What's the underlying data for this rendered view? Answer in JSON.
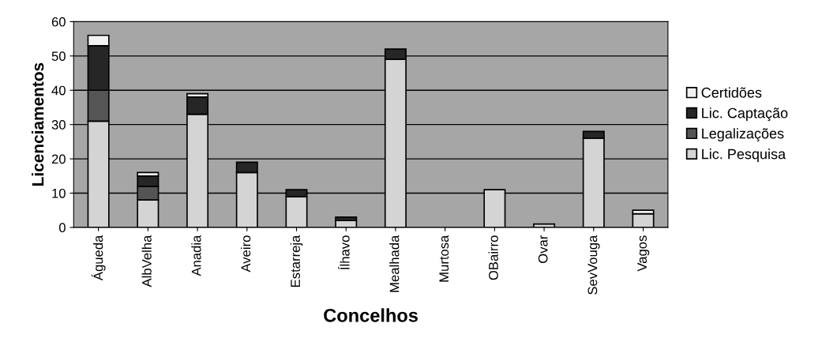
{
  "chart_data": {
    "type": "bar",
    "stacked": true,
    "xlabel": "Concelhos",
    "ylabel": "Licenciamentos",
    "categories": [
      "Águeda",
      "AlbVelha",
      "Anadia",
      "Aveiro",
      "Estarreja",
      "Ílhavo",
      "Mealhada",
      "Murtosa",
      "OBairro",
      "Ovar",
      "SevVouga",
      "Vagos"
    ],
    "series": [
      {
        "name": "Lic. Pesquisa",
        "color": "#d4d4d4",
        "values": [
          31,
          8,
          33,
          16,
          9,
          2,
          49,
          0,
          11,
          1,
          26,
          4
        ]
      },
      {
        "name": "Legalizações",
        "color": "#555555",
        "values": [
          9,
          4,
          0,
          0,
          0,
          0,
          0,
          0,
          0,
          0,
          0,
          0
        ]
      },
      {
        "name": "Lic. Captação",
        "color": "#262626",
        "values": [
          13,
          3,
          5,
          3,
          2,
          1,
          3,
          0,
          0,
          0,
          2,
          0
        ]
      },
      {
        "name": "Certidões",
        "color": "#f2f2f2",
        "values": [
          3,
          1,
          1,
          0,
          0,
          0,
          0,
          0,
          0,
          0,
          0,
          1
        ]
      }
    ],
    "ylim": [
      0,
      60
    ],
    "yticks": [
      0,
      10,
      20,
      30,
      40,
      50,
      60
    ],
    "grid": "y",
    "legend": "right"
  }
}
